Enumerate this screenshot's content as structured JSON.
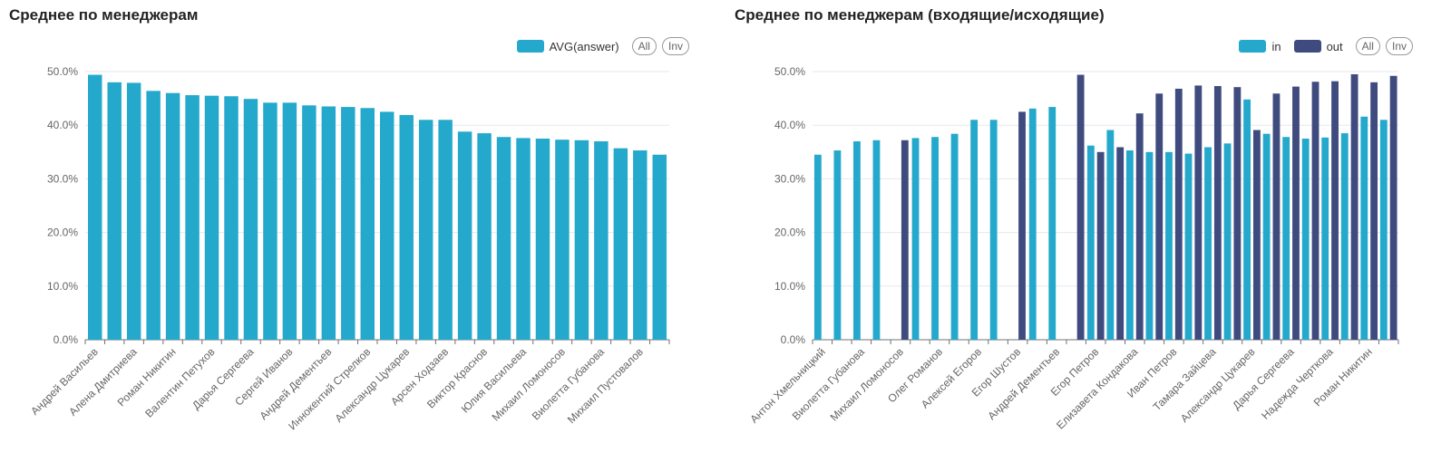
{
  "chart_data": [
    {
      "type": "bar",
      "title": "Среднее по менеджерам",
      "ylim": [
        0,
        50
      ],
      "yticks": [
        "0.0%",
        "10.0%",
        "20.0%",
        "30.0%",
        "40.0%",
        "50.0%"
      ],
      "grid": true,
      "legend_position": "top-right",
      "legend_buttons": [
        "All",
        "Inv"
      ],
      "categories": [
        "Андрей Васильев",
        "",
        "Алена Дмитриева",
        "",
        "Роман Никитин",
        "",
        "Валентин Петухов",
        "",
        "Дарья Сергеева",
        "",
        "Сергей Иванов",
        "",
        "Андрей Дементьев",
        "",
        "Иннокентий Стрелков",
        "",
        "Александр Цукарев",
        "",
        "Арсен Ходзаев",
        "",
        "Виктор Краснов",
        "",
        "Юлия Васильева",
        "",
        "Михаил Ломоносов",
        "",
        "Виолетта Губанова",
        "",
        "Михаил Пустовалов",
        ""
      ],
      "series": [
        {
          "name": "AVG(answer)",
          "color": "#24a9cc",
          "values": [
            49.4,
            48.0,
            47.9,
            46.4,
            46.0,
            45.6,
            45.5,
            45.4,
            44.9,
            44.2,
            44.2,
            43.7,
            43.5,
            43.4,
            43.2,
            42.5,
            41.9,
            41.0,
            41.0,
            38.8,
            38.5,
            37.8,
            37.6,
            37.5,
            37.3,
            37.2,
            37.0,
            35.7,
            35.3,
            34.5
          ]
        }
      ]
    },
    {
      "type": "bar",
      "title": "Среднее по менеджерам (входящие/исходящие)",
      "ylim": [
        0,
        50
      ],
      "yticks": [
        "0.0%",
        "10.0%",
        "20.0%",
        "30.0%",
        "40.0%",
        "50.0%"
      ],
      "grid": true,
      "legend_position": "top-right",
      "legend_buttons": [
        "All",
        "Inv"
      ],
      "categories": [
        "Антон Хмельницкий",
        "",
        "Виолетта Губанова",
        "",
        "Михаил Ломоносов",
        "",
        "Олег Романов",
        "",
        "Алексей Егоров",
        "",
        "Егор Шустов",
        "",
        "Андрей Дементьев",
        "",
        "Егор Петров",
        "",
        "Елизавета Кондакова",
        "",
        "Иван Петров",
        "",
        "Тамара Зайцева",
        "",
        "Александр Цукарев",
        "",
        "Дарья Сергеева",
        "",
        "Надежда Черткова",
        "",
        "Роман Никитин",
        ""
      ],
      "series": [
        {
          "name": "in",
          "color": "#24a9cc",
          "values": [
            34.5,
            35.3,
            37.0,
            37.2,
            null,
            37.6,
            37.8,
            38.4,
            41.0,
            41.0,
            null,
            43.1,
            43.4,
            null,
            36.2,
            39.1,
            35.3,
            35.0,
            35.0,
            34.7,
            35.9,
            36.6,
            44.8,
            38.4,
            37.8,
            37.5,
            37.7,
            38.5,
            41.6,
            41.0
          ]
        },
        {
          "name": "out",
          "color": "#3f4b7e",
          "values": [
            null,
            null,
            null,
            null,
            37.2,
            null,
            null,
            null,
            null,
            null,
            42.5,
            null,
            null,
            49.4,
            35.0,
            35.9,
            42.2,
            45.9,
            46.8,
            47.4,
            47.3,
            47.1,
            39.1,
            45.9,
            47.2,
            48.1,
            48.2,
            49.5,
            48.0,
            49.2
          ]
        }
      ]
    }
  ]
}
